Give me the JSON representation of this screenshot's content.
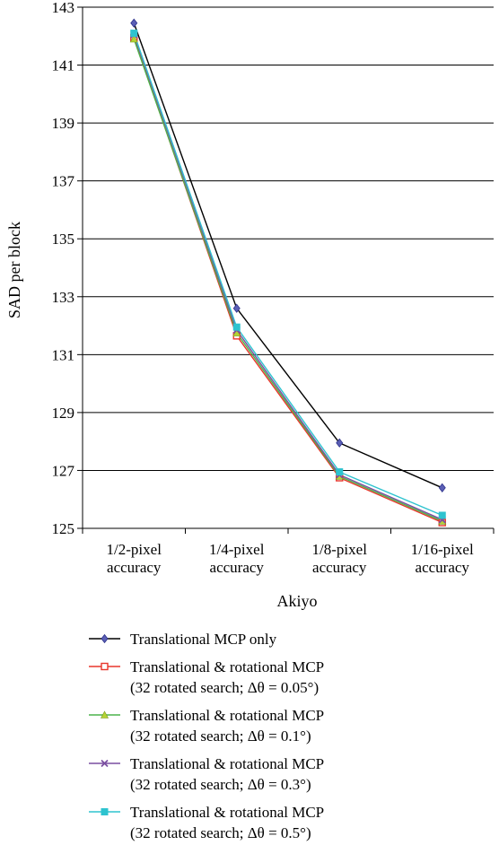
{
  "chart_data": {
    "type": "line",
    "xlabel": "Akiyo",
    "ylabel": "SAD per block",
    "ylim": [
      125,
      143
    ],
    "yticks": [
      125,
      127,
      129,
      131,
      133,
      135,
      137,
      139,
      141,
      143
    ],
    "grid": "horizontal",
    "legend_position": "bottom",
    "categories": [
      [
        "1/2-pixel",
        "accuracy"
      ],
      [
        "1/4-pixel",
        "accuracy"
      ],
      [
        "1/8-pixel",
        "accuracy"
      ],
      [
        "1/16-pixel",
        "accuracy"
      ]
    ],
    "series": [
      {
        "name": [
          "Translational MCP only"
        ],
        "color": "#000000",
        "marker": "diamond",
        "marker_color": "#5b5fb5",
        "values": [
          142.45,
          132.6,
          127.95,
          126.4
        ]
      },
      {
        "name": [
          "Translational & rotational MCP",
          "(32 rotated search; Δθ = 0.05°)"
        ],
        "color": "#e8362b",
        "marker": "square",
        "marker_color": "#e8362b",
        "values": [
          141.95,
          131.65,
          126.75,
          125.2
        ]
      },
      {
        "name": [
          "Translational & rotational MCP",
          "(32 rotated search; Δθ = 0.1°)"
        ],
        "color": "#4bb34b",
        "marker": "triangle",
        "marker_color": "#b5d334",
        "values": [
          141.9,
          131.75,
          126.8,
          125.25
        ]
      },
      {
        "name": [
          "Translational & rotational MCP",
          "(32 rotated search; Δθ = 0.3°)"
        ],
        "color": "#7a4fa0",
        "marker": "x",
        "marker_color": "#7a4fa0",
        "values": [
          142.05,
          131.85,
          126.85,
          125.3
        ]
      },
      {
        "name": [
          "Translational & rotational MCP",
          "(32 rotated search; Δθ = 0.5°)"
        ],
        "color": "#2ec3cf",
        "marker": "square-filled",
        "marker_color": "#2ec3cf",
        "values": [
          142.1,
          131.95,
          126.95,
          125.45
        ]
      }
    ]
  }
}
